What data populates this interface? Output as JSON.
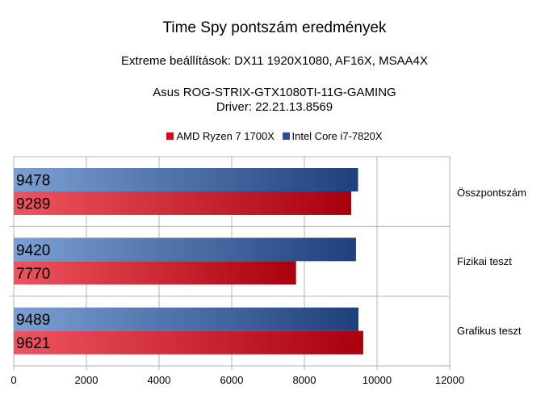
{
  "chart_data": {
    "type": "bar",
    "orientation": "horizontal",
    "title": "Time Spy pontszám eredmények",
    "subtitle_lines": [
      "Extreme beállítások: DX11 1920X1080, AF16X, MSAA4X",
      "Asus ROG-STRIX-GTX1080TI-11G-GAMING",
      "Driver: 22.21.13.8569"
    ],
    "categories": [
      "Összpontszám",
      "Fizikai teszt",
      "Grafikus teszt"
    ],
    "series": [
      {
        "name": "AMD Ryzen 7 1700X",
        "values": [
          9289,
          7770,
          9621
        ],
        "color": "#c8101a"
      },
      {
        "name": "Intel Core i7-7820X",
        "values": [
          9478,
          9420,
          9489
        ],
        "color": "#2b4f8f"
      }
    ],
    "xlim": [
      0,
      12000
    ],
    "xticks": [
      "0",
      "2000",
      "4000",
      "6000",
      "8000",
      "10000",
      "12000"
    ],
    "grid": true,
    "legend_position": "top",
    "data_labels": true
  }
}
